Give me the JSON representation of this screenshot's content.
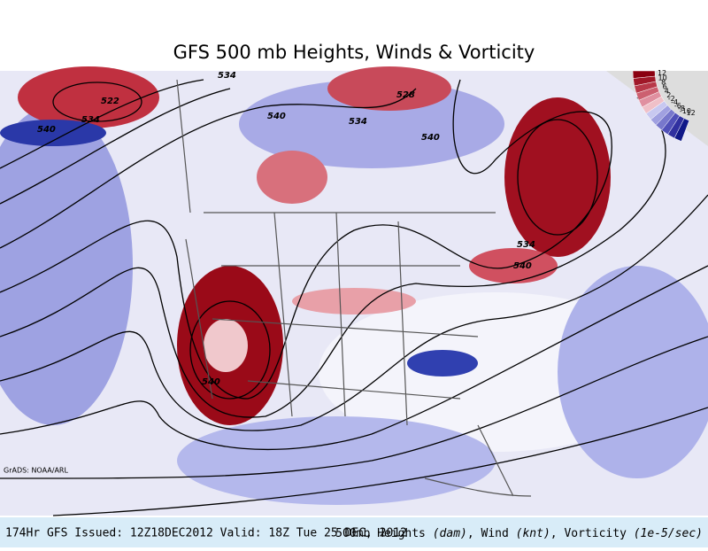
{
  "header": {
    "title": "GFS 500 mb Heights, Winds & Vorticity"
  },
  "map": {
    "contour_labels": [
      "522",
      "534",
      "540",
      "534",
      "540",
      "528",
      "534",
      "540",
      "534",
      "540",
      "540"
    ],
    "legend_labels": [
      "12",
      "10",
      "8",
      "6",
      "4",
      "2",
      "-2",
      "-4",
      "-6",
      "-8",
      "-10",
      "-12"
    ],
    "credit": "GrADS: NOAA/ARL"
  },
  "footer": {
    "left": "174Hr GFS Issued: 12Z18DEC2012 Valid: 18Z Tue 25 DEC, 2012",
    "right": [
      "500mb Heights ",
      "(dam)",
      ", Wind ",
      "(knt)",
      ", Vorticity ",
      "(1e-5/sec)"
    ]
  }
}
